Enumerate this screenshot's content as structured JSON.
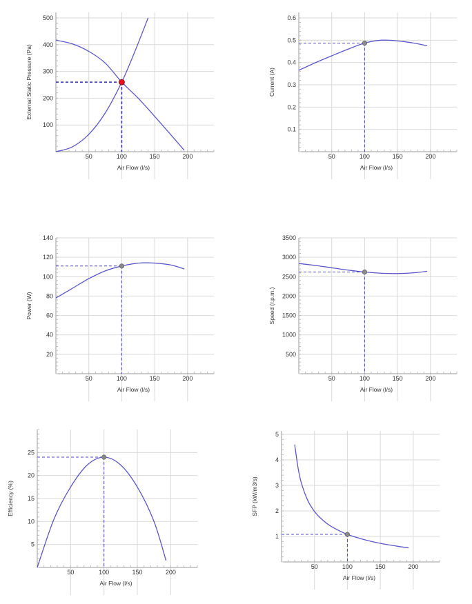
{
  "chart_data": [
    {
      "type": "line",
      "xlabel": "Air Flow (l/s)",
      "ylabel": "External Static Pressure (Pa)",
      "xlim": [
        0,
        240
      ],
      "ylim": [
        0,
        500
      ],
      "xticks": [
        50,
        100,
        150,
        200
      ],
      "yticks": [
        100,
        200,
        300,
        400,
        500
      ],
      "series": [
        {
          "x": [
            0,
            25,
            50,
            75,
            100,
            125,
            150,
            175,
            195
          ],
          "y": [
            417,
            403,
            375,
            331,
            260,
            200,
            132,
            62,
            5
          ]
        },
        {
          "x": [
            0,
            25,
            50,
            75,
            100,
            120,
            140
          ],
          "y": [
            0,
            18,
            65,
            145,
            260,
            375,
            500
          ]
        }
      ],
      "operating_point": {
        "x": 100,
        "y": 260,
        "color": "#e8101c"
      }
    },
    {
      "type": "line",
      "xlabel": "Air Flow (l/s)",
      "ylabel": "Current (A)",
      "xlim": [
        0,
        240
      ],
      "ylim": [
        0,
        0.6
      ],
      "xticks": [
        50,
        100,
        150,
        200
      ],
      "yticks": [
        0.1,
        0.2,
        0.3,
        0.4,
        0.5,
        0.6
      ],
      "series": [
        {
          "x": [
            0,
            25,
            50,
            75,
            100,
            125,
            150,
            175,
            195
          ],
          "y": [
            0.365,
            0.399,
            0.43,
            0.46,
            0.487,
            0.5,
            0.497,
            0.487,
            0.475
          ]
        }
      ],
      "operating_point": {
        "x": 100,
        "y": 0.487,
        "color": "#8a8a8a"
      }
    },
    {
      "type": "line",
      "xlabel": "Air Flow (l/s)",
      "ylabel": "Power (W)",
      "xlim": [
        0,
        240
      ],
      "ylim": [
        0,
        140
      ],
      "xticks": [
        50,
        100,
        150,
        200
      ],
      "yticks": [
        20,
        40,
        60,
        80,
        100,
        120,
        140
      ],
      "series": [
        {
          "x": [
            0,
            25,
            50,
            75,
            100,
            125,
            150,
            175,
            195
          ],
          "y": [
            78,
            88,
            98,
            106,
            111,
            114,
            114,
            112,
            108
          ]
        }
      ],
      "operating_point": {
        "x": 100,
        "y": 111,
        "color": "#8a8a8a"
      }
    },
    {
      "type": "line",
      "xlabel": "Air Flow (l/s)",
      "ylabel": "Speed (r.p.m.)",
      "xlim": [
        0,
        240
      ],
      "ylim": [
        0,
        3500
      ],
      "xticks": [
        50,
        100,
        150,
        200
      ],
      "yticks": [
        500,
        1000,
        1500,
        2000,
        2500,
        3000,
        3500
      ],
      "series": [
        {
          "x": [
            0,
            25,
            50,
            75,
            100,
            125,
            150,
            175,
            195
          ],
          "y": [
            2840,
            2790,
            2730,
            2670,
            2620,
            2590,
            2580,
            2600,
            2640
          ]
        }
      ],
      "operating_point": {
        "x": 100,
        "y": 2620,
        "color": "#8a8a8a"
      }
    },
    {
      "type": "line",
      "xlabel": "Air Flow (l/s)",
      "ylabel": "Efficiency (%)",
      "xlim": [
        0,
        240
      ],
      "ylim": [
        0,
        30
      ],
      "xticks": [
        50,
        100,
        150,
        200
      ],
      "yticks": [
        5,
        10,
        15,
        20,
        25
      ],
      "series": [
        {
          "x": [
            0,
            25,
            50,
            75,
            100,
            125,
            150,
            175,
            193
          ],
          "y": [
            0,
            10.5,
            17.5,
            22.3,
            24,
            22.3,
            17.5,
            10,
            1.5
          ]
        }
      ],
      "operating_point": {
        "x": 100,
        "y": 24,
        "color": "#8a8a8a"
      }
    },
    {
      "type": "line",
      "xlabel": "Air Flow (l/s)",
      "ylabel": "SFP (kW/m3/s)",
      "xlim": [
        0,
        240
      ],
      "ylim": [
        0,
        5
      ],
      "xticks": [
        50,
        100,
        150,
        200
      ],
      "yticks": [
        1,
        2,
        3,
        4,
        5
      ],
      "series": [
        {
          "x": [
            20,
            25,
            30,
            40,
            50,
            60,
            75,
            100,
            125,
            150,
            175,
            193
          ],
          "y": [
            4.6,
            3.7,
            3.1,
            2.4,
            1.98,
            1.7,
            1.4,
            1.08,
            0.88,
            0.73,
            0.62,
            0.55
          ]
        }
      ],
      "operating_point": {
        "x": 100,
        "y": 1.08,
        "color": "#8a8a8a"
      }
    }
  ]
}
